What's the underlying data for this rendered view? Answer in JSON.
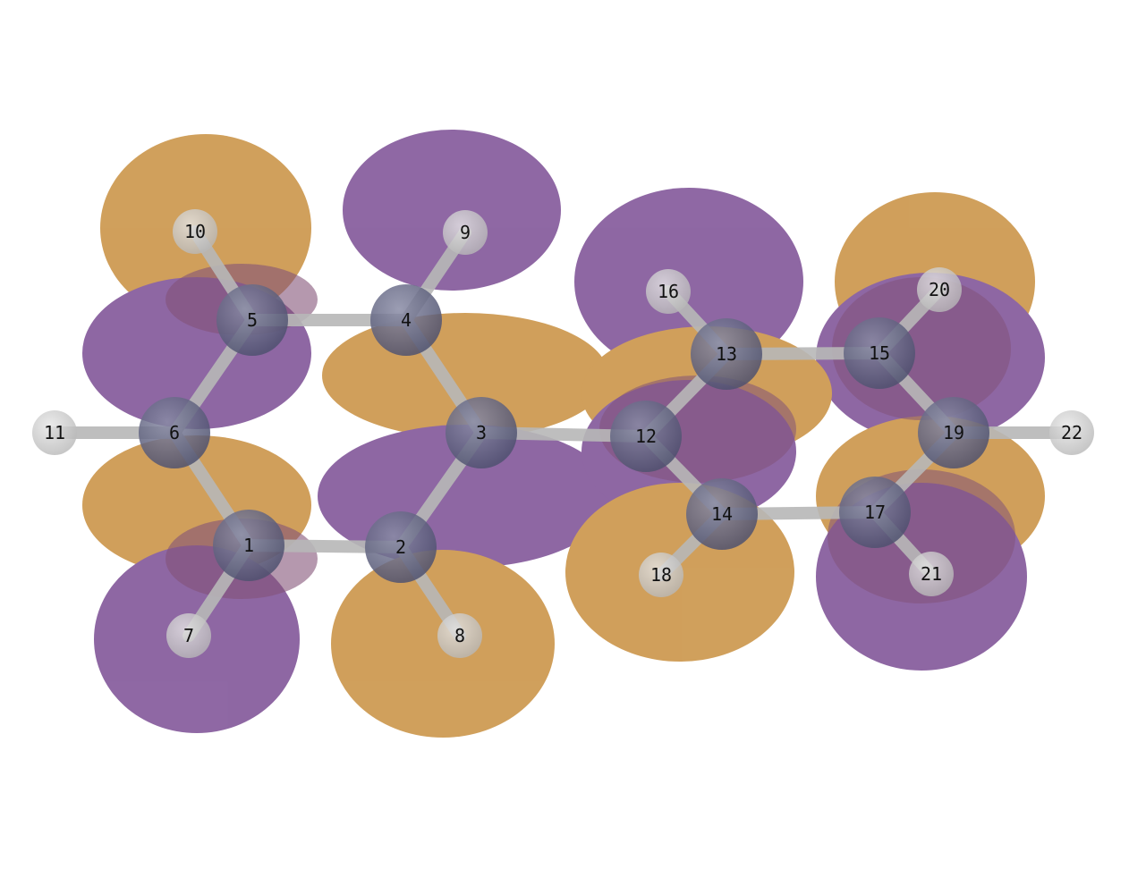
{
  "colors": {
    "lobe_positive": "#c88f3f",
    "lobe_negative": "#7b4d94",
    "overlap": "#6e3560",
    "carbon_atom": "#5f627e",
    "hydrogen_atom": "#c9c9c9",
    "bond": "#b8b8b8",
    "label_text": "#111111"
  },
  "atoms": [
    {
      "id": "1",
      "element": "C"
    },
    {
      "id": "2",
      "element": "C"
    },
    {
      "id": "3",
      "element": "C"
    },
    {
      "id": "4",
      "element": "C"
    },
    {
      "id": "5",
      "element": "C"
    },
    {
      "id": "6",
      "element": "C"
    },
    {
      "id": "7",
      "element": "H"
    },
    {
      "id": "8",
      "element": "H"
    },
    {
      "id": "9",
      "element": "H"
    },
    {
      "id": "10",
      "element": "H"
    },
    {
      "id": "11",
      "element": "H"
    },
    {
      "id": "12",
      "element": "C"
    },
    {
      "id": "13",
      "element": "C"
    },
    {
      "id": "14",
      "element": "C"
    },
    {
      "id": "15",
      "element": "C"
    },
    {
      "id": "16",
      "element": "H"
    },
    {
      "id": "17",
      "element": "C"
    },
    {
      "id": "18",
      "element": "H"
    },
    {
      "id": "19",
      "element": "C"
    },
    {
      "id": "20",
      "element": "H"
    },
    {
      "id": "21",
      "element": "H"
    },
    {
      "id": "22",
      "element": "H"
    }
  ],
  "bonds": [
    [
      "1",
      "2"
    ],
    [
      "2",
      "3"
    ],
    [
      "3",
      "4"
    ],
    [
      "4",
      "5"
    ],
    [
      "5",
      "6"
    ],
    [
      "6",
      "1"
    ],
    [
      "1",
      "7"
    ],
    [
      "2",
      "8"
    ],
    [
      "4",
      "9"
    ],
    [
      "5",
      "10"
    ],
    [
      "6",
      "11"
    ],
    [
      "3",
      "12"
    ],
    [
      "12",
      "13"
    ],
    [
      "12",
      "14"
    ],
    [
      "13",
      "15"
    ],
    [
      "14",
      "17"
    ],
    [
      "15",
      "19"
    ],
    [
      "17",
      "19"
    ],
    [
      "13",
      "16"
    ],
    [
      "14",
      "18"
    ],
    [
      "15",
      "20"
    ],
    [
      "17",
      "21"
    ],
    [
      "19",
      "22"
    ]
  ]
}
